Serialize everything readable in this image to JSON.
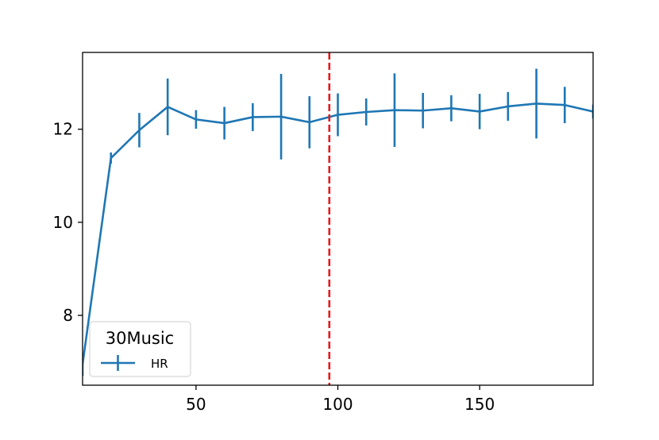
{
  "chart_data": {
    "type": "line",
    "x": [
      10,
      20,
      30,
      40,
      50,
      60,
      70,
      80,
      90,
      100,
      110,
      120,
      130,
      140,
      150,
      160,
      170,
      180,
      190
    ],
    "series": [
      {
        "name": "HR",
        "values": [
          6.95,
          11.38,
          11.98,
          12.48,
          12.21,
          12.13,
          12.26,
          12.27,
          12.15,
          12.31,
          12.37,
          12.41,
          12.4,
          12.45,
          12.38,
          12.49,
          12.55,
          12.52,
          12.38
        ],
        "errors": [
          0.25,
          0.12,
          0.37,
          0.61,
          0.2,
          0.35,
          0.3,
          0.92,
          0.56,
          0.46,
          0.29,
          0.79,
          0.38,
          0.28,
          0.38,
          0.31,
          0.75,
          0.39,
          0.15
        ],
        "color": "#1f77b4"
      }
    ],
    "xlim": [
      10,
      190
    ],
    "ylim": [
      6.5,
      13.65
    ],
    "xticks": [
      50,
      100,
      150
    ],
    "yticks": [
      8,
      10,
      12
    ],
    "vline": {
      "x": 97,
      "color": "#e41a1c",
      "style": "dashed"
    },
    "legend": {
      "title": "30Music",
      "entries": [
        "HR"
      ],
      "position": "lower-left"
    },
    "title": "",
    "xlabel": "",
    "ylabel": "",
    "grid": false
  }
}
